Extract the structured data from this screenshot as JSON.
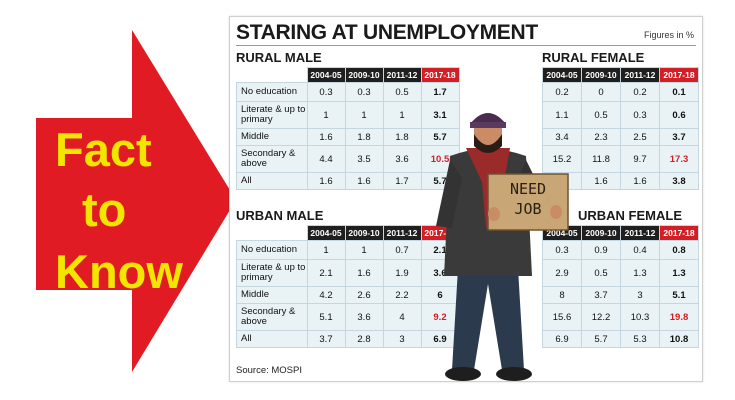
{
  "arrow": {
    "words": [
      "Fact",
      "to",
      "Know"
    ],
    "color": "#e01b24",
    "text_color": "#f2e600"
  },
  "headline": "STARING AT UNEMPLOYMENT",
  "units": "Figures in %",
  "source": "Source: MOSPI",
  "sign_text": [
    "NEED",
    "JOB"
  ],
  "columns": [
    "2004-05",
    "2009-10",
    "2011-12",
    "2017-18"
  ],
  "chart_data": [
    {
      "type": "table",
      "title": "RURAL MALE",
      "columns": [
        "2004-05",
        "2009-10",
        "2011-12",
        "2017-18"
      ],
      "rows": [
        {
          "label": "No education",
          "values": [
            "0.3",
            "0.3",
            "0.5",
            "1.7"
          ]
        },
        {
          "label": "Literate & up to primary",
          "values": [
            "1",
            "1",
            "1",
            "3.1"
          ]
        },
        {
          "label": "Middle",
          "values": [
            "1.6",
            "1.8",
            "1.8",
            "5.7"
          ]
        },
        {
          "label": "Secondary & above",
          "values": [
            "4.4",
            "3.5",
            "3.6",
            "10.5"
          ]
        },
        {
          "label": "All",
          "values": [
            "1.6",
            "1.6",
            "1.7",
            "5.7"
          ]
        }
      ]
    },
    {
      "type": "table",
      "title": "RURAL FEMALE",
      "columns": [
        "2004-05",
        "2009-10",
        "2011-12",
        "2017-18"
      ],
      "rows": [
        {
          "label": "No education",
          "values": [
            "0.2",
            "0",
            "0.2",
            "0.1"
          ]
        },
        {
          "label": "Literate & up to primary",
          "values": [
            "1.1",
            "0.5",
            "0.3",
            "0.6"
          ]
        },
        {
          "label": "Middle",
          "values": [
            "3.4",
            "2.3",
            "2.5",
            "3.7"
          ]
        },
        {
          "label": "Secondary & above",
          "values": [
            "15.2",
            "11.8",
            "9.7",
            "17.3"
          ]
        },
        {
          "label": "All",
          "values": [
            "",
            "1.6",
            "1.6",
            "3.8"
          ]
        }
      ]
    },
    {
      "type": "table",
      "title": "URBAN MALE",
      "columns": [
        "2004-05",
        "2009-10",
        "2011-12",
        "2017-18"
      ],
      "rows": [
        {
          "label": "No education",
          "values": [
            "1",
            "1",
            "0.7",
            "2.1"
          ]
        },
        {
          "label": "Literate & up to primary",
          "values": [
            "2.1",
            "1.6",
            "1.9",
            "3.6"
          ]
        },
        {
          "label": "Middle",
          "values": [
            "4.2",
            "2.6",
            "2.2",
            "6"
          ]
        },
        {
          "label": "Secondary & above",
          "values": [
            "5.1",
            "3.6",
            "4",
            "9.2"
          ]
        },
        {
          "label": "All",
          "values": [
            "3.7",
            "2.8",
            "3",
            "6.9"
          ]
        }
      ]
    },
    {
      "type": "table",
      "title": "URBAN FEMALE",
      "columns": [
        "2004-05",
        "2009-10",
        "2011-12",
        "2017-18"
      ],
      "rows": [
        {
          "label": "No education",
          "values": [
            "0.3",
            "0.9",
            "0.4",
            "0.8"
          ]
        },
        {
          "label": "Literate & up to primary",
          "values": [
            "2.9",
            "0.5",
            "1.3",
            "1.3"
          ]
        },
        {
          "label": "Middle",
          "values": [
            "8",
            "3.7",
            "3",
            "5.1"
          ]
        },
        {
          "label": "Secondary & above",
          "values": [
            "15.6",
            "12.2",
            "10.3",
            "19.8"
          ]
        },
        {
          "label": "All",
          "values": [
            "6.9",
            "5.7",
            "5.3",
            "10.8"
          ]
        }
      ]
    }
  ],
  "colors": {
    "header": "#1f1f1f",
    "highlight": "#d21f26",
    "cell": "#e9f3f6",
    "red_value": "#d21f26"
  },
  "red_values_2017_18": [
    "Secondary & above"
  ]
}
